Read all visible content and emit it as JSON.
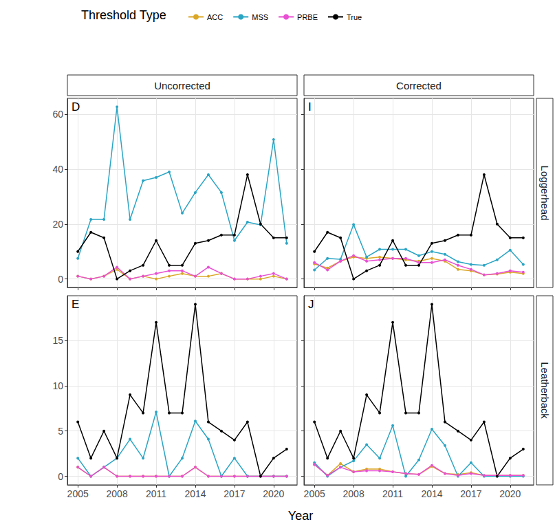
{
  "legend_title": "Threshold Type",
  "xlabel": "Year",
  "chart_data": [
    {
      "type": "line",
      "panel": "D",
      "column": "Uncorrected",
      "row": "Loggerhead",
      "x": [
        2005,
        2006,
        2007,
        2008,
        2009,
        2010,
        2011,
        2012,
        2013,
        2014,
        2015,
        2016,
        2017,
        2018,
        2019,
        2020,
        2021
      ],
      "xlim": [
        2004.2,
        2021.8
      ],
      "xticks": [
        2005,
        2008,
        2011,
        2014,
        2017,
        2020
      ],
      "ylim": [
        -3.1,
        65.8
      ],
      "yticks": [
        0,
        20,
        40,
        60
      ],
      "grid": true,
      "legend": "top",
      "marker": "circle",
      "line_style": "solid",
      "tick_labels": "y",
      "series": [
        {
          "name": "ACC",
          "color": "#dba726",
          "values": [
            1,
            0,
            1,
            3.5,
            0,
            1,
            0,
            1,
            2,
            1,
            1,
            2,
            0,
            0,
            0,
            1,
            0
          ]
        },
        {
          "name": "MSS",
          "color": "#2aa5c4",
          "values": [
            7.5,
            21.7,
            21.7,
            62.7,
            21.7,
            35.8,
            37,
            39,
            24,
            31.5,
            38,
            31.5,
            14,
            20.7,
            19.7,
            50.8,
            13
          ]
        },
        {
          "name": "PRBE",
          "color": "#e84fd3",
          "values": [
            1,
            0,
            1,
            4.3,
            0,
            1,
            2,
            3,
            3,
            1,
            4.3,
            2,
            0,
            0,
            1,
            2,
            0
          ]
        },
        {
          "name": "True",
          "color": "#000000",
          "values": [
            10,
            17,
            15,
            0,
            3,
            5,
            14,
            5,
            5,
            13,
            14,
            16,
            16,
            38,
            20,
            15,
            15
          ]
        }
      ]
    },
    {
      "type": "line",
      "panel": "I",
      "column": "Corrected",
      "row": "Loggerhead",
      "x": [
        2005,
        2006,
        2007,
        2008,
        2009,
        2010,
        2011,
        2012,
        2013,
        2014,
        2015,
        2016,
        2017,
        2018,
        2019,
        2020,
        2021
      ],
      "xlim": [
        2004.2,
        2021.8
      ],
      "xticks": [
        2005,
        2008,
        2011,
        2014,
        2017,
        2020
      ],
      "ylim": [
        -3.1,
        65.8
      ],
      "yticks": [
        0,
        20,
        40,
        60
      ],
      "grid": true,
      "legend": "top",
      "marker": "circle",
      "line_style": "solid",
      "tick_labels": false,
      "series": [
        {
          "name": "ACC",
          "color": "#dba726",
          "values": [
            5.5,
            4,
            6.5,
            8,
            7.5,
            8,
            7.5,
            7,
            6.5,
            7.5,
            6.5,
            3.5,
            3,
            1.5,
            1.8,
            2.5,
            2
          ]
        },
        {
          "name": "MSS",
          "color": "#2aa5c4",
          "values": [
            3.3,
            7.5,
            7.2,
            19.8,
            8,
            10.8,
            10.8,
            10.8,
            8.5,
            10,
            9,
            6.3,
            5.3,
            5,
            7,
            10.5,
            5.3
          ]
        },
        {
          "name": "PRBE",
          "color": "#e84fd3",
          "values": [
            6,
            3.3,
            6.5,
            8.5,
            6.5,
            7,
            7.5,
            7.5,
            6,
            6,
            7,
            5,
            3.5,
            1.5,
            2,
            3,
            2.5
          ]
        },
        {
          "name": "True",
          "color": "#000000",
          "values": [
            10,
            17,
            15,
            0,
            3,
            5,
            14,
            5,
            5,
            13,
            14,
            16,
            16,
            38,
            20,
            15,
            15
          ]
        }
      ]
    },
    {
      "type": "line",
      "panel": "E",
      "column": "Uncorrected",
      "row": "Leatherback",
      "x": [
        2005,
        2006,
        2007,
        2008,
        2009,
        2010,
        2011,
        2012,
        2013,
        2014,
        2015,
        2016,
        2017,
        2018,
        2019,
        2020,
        2021
      ],
      "xlim": [
        2004.2,
        2021.8
      ],
      "xticks": [
        2005,
        2008,
        2011,
        2014,
        2017,
        2020
      ],
      "ylim": [
        -0.95,
        19.95
      ],
      "yticks": [
        0,
        5,
        10,
        15
      ],
      "grid": true,
      "legend": "top",
      "marker": "circle",
      "line_style": "solid",
      "tick_labels": true,
      "series": [
        {
          "name": "ACC",
          "color": "#dba726",
          "values": [
            1,
            0,
            1,
            0,
            0,
            0,
            0,
            0,
            0,
            1,
            0,
            0,
            0,
            0,
            0,
            0,
            0
          ]
        },
        {
          "name": "MSS",
          "color": "#2aa5c4",
          "values": [
            2,
            0,
            1,
            2,
            4.1,
            2,
            7.1,
            0,
            2,
            6.1,
            4.1,
            0,
            2,
            0,
            0,
            0,
            0
          ]
        },
        {
          "name": "PRBE",
          "color": "#e84fd3",
          "values": [
            1,
            0,
            1,
            0,
            0,
            0,
            0,
            0,
            0,
            1,
            0,
            0,
            0,
            0,
            0,
            0,
            0
          ]
        },
        {
          "name": "True",
          "color": "#000000",
          "values": [
            6,
            2,
            5,
            2,
            9,
            7,
            17,
            7,
            7,
            19,
            6,
            5,
            4,
            6,
            0,
            2,
            3
          ]
        }
      ]
    },
    {
      "type": "line",
      "panel": "J",
      "column": "Corrected",
      "row": "Leatherback",
      "x": [
        2005,
        2006,
        2007,
        2008,
        2009,
        2010,
        2011,
        2012,
        2013,
        2014,
        2015,
        2016,
        2017,
        2018,
        2019,
        2020,
        2021
      ],
      "xlim": [
        2004.2,
        2021.8
      ],
      "xticks": [
        2005,
        2008,
        2011,
        2014,
        2017,
        2020
      ],
      "ylim": [
        -0.95,
        19.95
      ],
      "yticks": [
        0,
        5,
        10,
        15
      ],
      "grid": true,
      "legend": "top",
      "marker": "circle",
      "line_style": "solid",
      "tick_labels": "x",
      "series": [
        {
          "name": "ACC",
          "color": "#dba726",
          "values": [
            1.3,
            0.1,
            1.4,
            0.5,
            0.8,
            0.8,
            0.5,
            0.3,
            0.2,
            1.1,
            0.3,
            0.2,
            0.4,
            0.1,
            0.1,
            0.1,
            0.1
          ]
        },
        {
          "name": "MSS",
          "color": "#2aa5c4",
          "values": [
            1.5,
            0,
            1,
            1.7,
            3.5,
            2,
            5.6,
            0,
            1.8,
            5.2,
            3.4,
            0,
            1.5,
            0,
            0,
            0,
            0
          ]
        },
        {
          "name": "PRBE",
          "color": "#e84fd3",
          "values": [
            1.3,
            0.1,
            1,
            0.5,
            0.6,
            0.6,
            0.5,
            0.3,
            0.2,
            1.2,
            0.3,
            0.1,
            0.3,
            0.1,
            0.1,
            0.1,
            0.1
          ]
        },
        {
          "name": "True",
          "color": "#000000",
          "values": [
            6,
            2,
            5,
            2,
            9,
            7,
            17,
            7,
            7,
            19,
            6,
            5,
            4,
            6,
            0,
            2,
            3
          ]
        }
      ]
    }
  ]
}
